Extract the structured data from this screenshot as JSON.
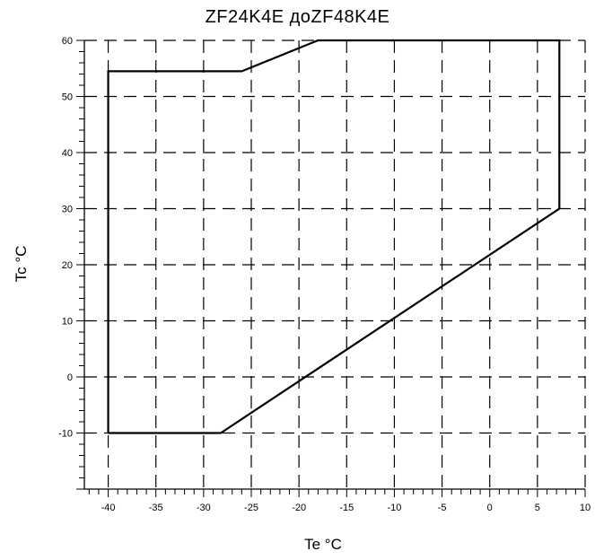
{
  "chart_data": {
    "type": "line",
    "title": "ZF24K4E  доZF48K4E",
    "xlabel": "Te °C",
    "ylabel": "Tc °C",
    "xlim": [
      -42.5,
      10
    ],
    "ylim": [
      -20,
      60
    ],
    "x_ticks": [
      -40,
      -35,
      -30,
      -25,
      -20,
      -15,
      -10,
      -5,
      0,
      5,
      10
    ],
    "y_ticks": [
      -10,
      0,
      10,
      20,
      30,
      40,
      50,
      60
    ],
    "grid": true,
    "grid_style": "dashed",
    "series": [
      {
        "points": [
          {
            "x": -40,
            "y": -10
          },
          {
            "x": -40,
            "y": 54.5
          },
          {
            "x": -26,
            "y": 54.5
          },
          {
            "x": -18,
            "y": 60
          },
          {
            "x": 7.3,
            "y": 60
          },
          {
            "x": 7.3,
            "y": 30
          },
          {
            "x": -28.2,
            "y": -10
          },
          {
            "x": -40,
            "y": -10
          }
        ]
      }
    ]
  }
}
